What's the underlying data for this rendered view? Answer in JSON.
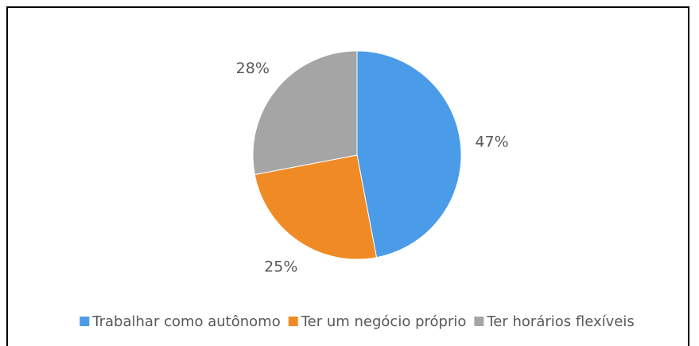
{
  "chart_data": {
    "type": "pie",
    "categories": [
      "Trabalhar como autônomo",
      "Ter um negócio próprio",
      "Ter horários flexíveis"
    ],
    "values": [
      47,
      25,
      28
    ],
    "value_labels": [
      "47%",
      "25%",
      "28%"
    ],
    "colors": [
      "#4a9be8",
      "#f08a24",
      "#a5a5a5"
    ],
    "legend": "bottom"
  }
}
